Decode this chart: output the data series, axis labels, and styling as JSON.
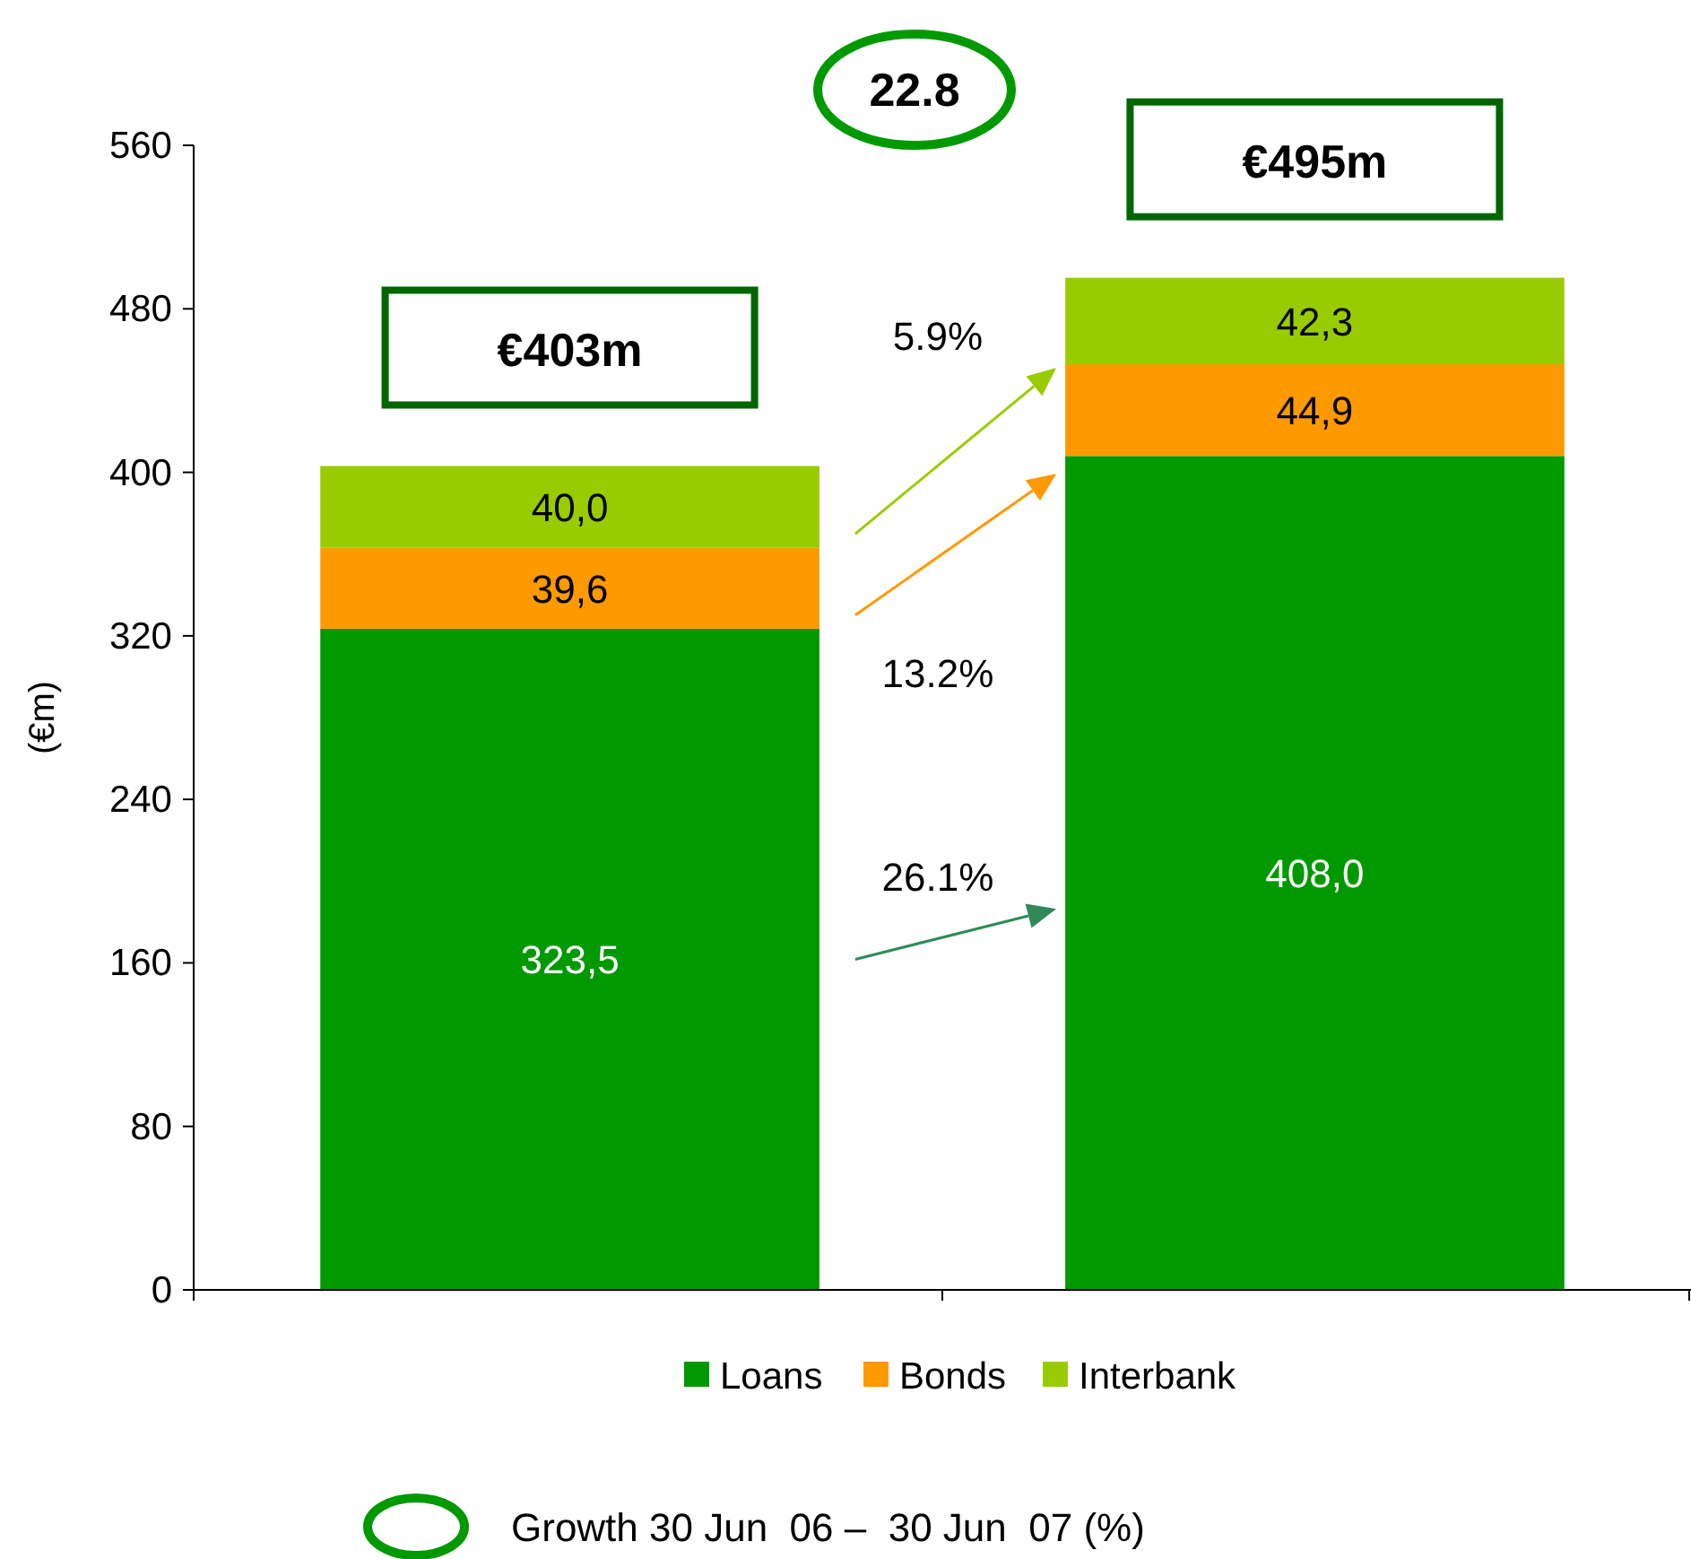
{
  "chart_data": {
    "type": "bar",
    "stacked": true,
    "categories": [
      null,
      null
    ],
    "series": [
      {
        "name": "Loans",
        "color": "#009900",
        "values": [
          323.5,
          408.0
        ],
        "value_labels": [
          "323,5",
          "408,0"
        ]
      },
      {
        "name": "Bonds",
        "color": "#ff9900",
        "values": [
          39.6,
          44.9
        ],
        "value_labels": [
          "39,6",
          "44,9"
        ]
      },
      {
        "name": "Interbank",
        "color": "#99cc00",
        "values": [
          40.0,
          42.3
        ],
        "value_labels": [
          "40,0",
          "42,3"
        ]
      }
    ],
    "totals": [
      "€403m",
      "€495m"
    ],
    "ylabel": "(€m)",
    "ylim": [
      0,
      560
    ],
    "yticks": [
      0,
      80,
      160,
      240,
      320,
      400,
      480,
      560
    ],
    "grid": false,
    "legend": "bottom",
    "annotations": [
      "22.8",
      "26.1%",
      "13.2%",
      "5.9%",
      "Growth 30 Jun  06 –  30 Jun  07 (%)"
    ]
  }
}
